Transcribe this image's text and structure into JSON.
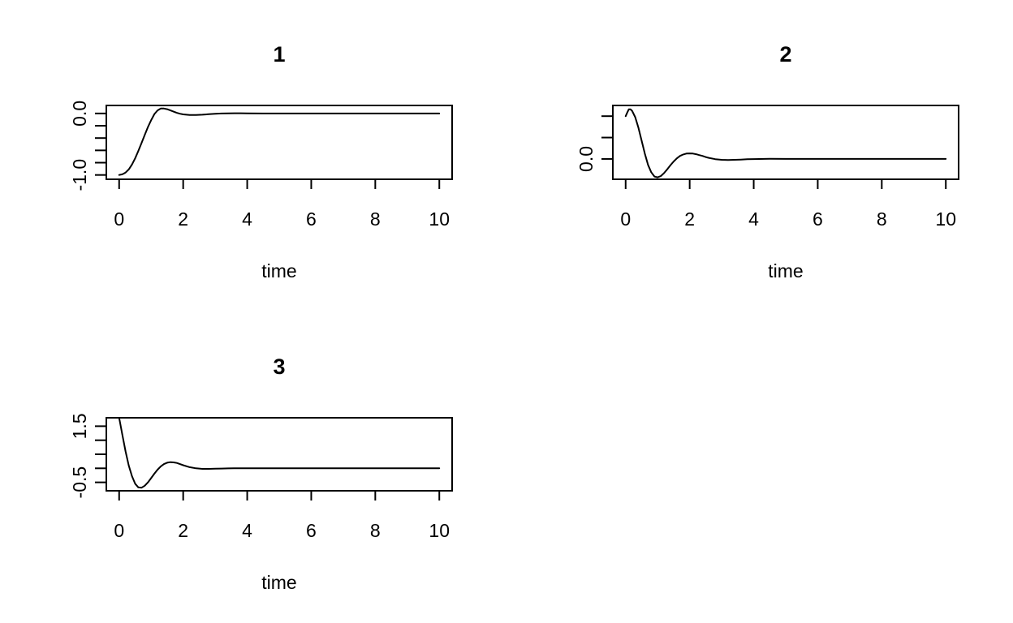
{
  "chart_data": [
    {
      "type": "line",
      "title": "1",
      "xlabel": "time",
      "ylabel": "",
      "xlim": [
        -0.4,
        10.4
      ],
      "ylim": [
        -1.07,
        0.13
      ],
      "xticks": [
        0,
        2,
        4,
        6,
        8,
        10
      ],
      "xtick_labels": [
        "0",
        "2",
        "4",
        "6",
        "8",
        "10"
      ],
      "yticks": [
        -1.0,
        -0.8,
        -0.6,
        -0.4,
        -0.2,
        0.0
      ],
      "ytick_labels": [
        "-1.0",
        "",
        "",
        "",
        "",
        "0.0"
      ],
      "grid": false,
      "series": [
        {
          "x": [
            0,
            0.1,
            0.2,
            0.3,
            0.4,
            0.5,
            0.6,
            0.7,
            0.8,
            0.9,
            1.0,
            1.1,
            1.2,
            1.3,
            1.4,
            1.5,
            1.6,
            1.7,
            1.8,
            1.9,
            2.0,
            2.2,
            2.4,
            2.6,
            2.8,
            3.0,
            3.2,
            3.4,
            3.6,
            3.8,
            4.0,
            4.5,
            5.0,
            6.0,
            7.0,
            8.0,
            9.0,
            10.0
          ],
          "y": [
            -1.0,
            -0.99,
            -0.96,
            -0.91,
            -0.83,
            -0.73,
            -0.61,
            -0.48,
            -0.35,
            -0.22,
            -0.11,
            -0.01,
            0.05,
            0.08,
            0.08,
            0.07,
            0.05,
            0.03,
            0.01,
            -0.005,
            -0.015,
            -0.025,
            -0.025,
            -0.02,
            -0.013,
            -0.006,
            -0.001,
            0.002,
            0.003,
            0.003,
            0.002,
            0.0,
            0.0,
            0.0,
            0.0,
            0.0,
            0.0,
            0.0
          ]
        }
      ]
    },
    {
      "type": "line",
      "title": "2",
      "xlabel": "time",
      "ylabel": "",
      "xlim": [
        -0.4,
        10.4
      ],
      "ylim": [
        -0.95,
        2.5
      ],
      "xticks": [
        0,
        2,
        4,
        6,
        8,
        10
      ],
      "xtick_labels": [
        "0",
        "2",
        "4",
        "6",
        "8",
        "10"
      ],
      "yticks": [
        0.0,
        1.0,
        2.0
      ],
      "ytick_labels": [
        "0.0",
        "",
        ""
      ],
      "grid": false,
      "series": [
        {
          "x": [
            0,
            0.05,
            0.1,
            0.15,
            0.2,
            0.3,
            0.4,
            0.5,
            0.6,
            0.7,
            0.8,
            0.9,
            1.0,
            1.1,
            1.2,
            1.3,
            1.4,
            1.5,
            1.6,
            1.7,
            1.8,
            1.9,
            2.0,
            2.1,
            2.2,
            2.3,
            2.4,
            2.5,
            2.6,
            2.8,
            3.0,
            3.2,
            3.4,
            3.6,
            3.8,
            4.0,
            4.5,
            5.0,
            6.0,
            7.0,
            8.0,
            9.0,
            10.0
          ],
          "y": [
            2.0,
            2.17,
            2.32,
            2.32,
            2.25,
            1.95,
            1.45,
            0.85,
            0.25,
            -0.28,
            -0.62,
            -0.82,
            -0.86,
            -0.8,
            -0.66,
            -0.48,
            -0.29,
            -0.12,
            0.03,
            0.14,
            0.21,
            0.25,
            0.26,
            0.25,
            0.22,
            0.18,
            0.14,
            0.09,
            0.05,
            -0.01,
            -0.04,
            -0.05,
            -0.04,
            -0.03,
            -0.015,
            -0.005,
            0.005,
            0.0,
            0.0,
            0.0,
            0.0,
            0.0,
            0.0
          ]
        }
      ]
    },
    {
      "type": "line",
      "title": "3",
      "xlabel": "time",
      "ylabel": "",
      "xlim": [
        -0.4,
        10.4
      ],
      "ylim": [
        -0.8,
        1.8
      ],
      "xticks": [
        0,
        2,
        4,
        6,
        8,
        10
      ],
      "xtick_labels": [
        "0",
        "2",
        "4",
        "6",
        "8",
        "10"
      ],
      "yticks": [
        -0.5,
        0.0,
        0.5,
        1.0,
        1.5
      ],
      "ytick_labels": [
        "-0.5",
        "",
        "",
        "",
        "1.5"
      ],
      "grid": false,
      "series": [
        {
          "x": [
            0,
            0.1,
            0.2,
            0.3,
            0.4,
            0.5,
            0.6,
            0.7,
            0.8,
            0.9,
            1.0,
            1.1,
            1.2,
            1.3,
            1.4,
            1.5,
            1.6,
            1.7,
            1.8,
            1.9,
            2.0,
            2.2,
            2.4,
            2.6,
            2.8,
            3.0,
            3.2,
            3.4,
            3.6,
            3.8,
            4.0,
            4.5,
            5.0,
            6.0,
            7.0,
            8.0,
            9.0,
            10.0
          ],
          "y": [
            1.8,
            1.2,
            0.6,
            0.1,
            -0.28,
            -0.55,
            -0.68,
            -0.69,
            -0.62,
            -0.5,
            -0.35,
            -0.19,
            -0.05,
            0.07,
            0.15,
            0.2,
            0.22,
            0.21,
            0.19,
            0.15,
            0.11,
            0.04,
            0.0,
            -0.02,
            -0.02,
            -0.015,
            -0.008,
            -0.002,
            0.002,
            0.003,
            0.002,
            0.0,
            0.0,
            0.0,
            0.0,
            0.0,
            0.0,
            0.0
          ]
        }
      ]
    }
  ]
}
